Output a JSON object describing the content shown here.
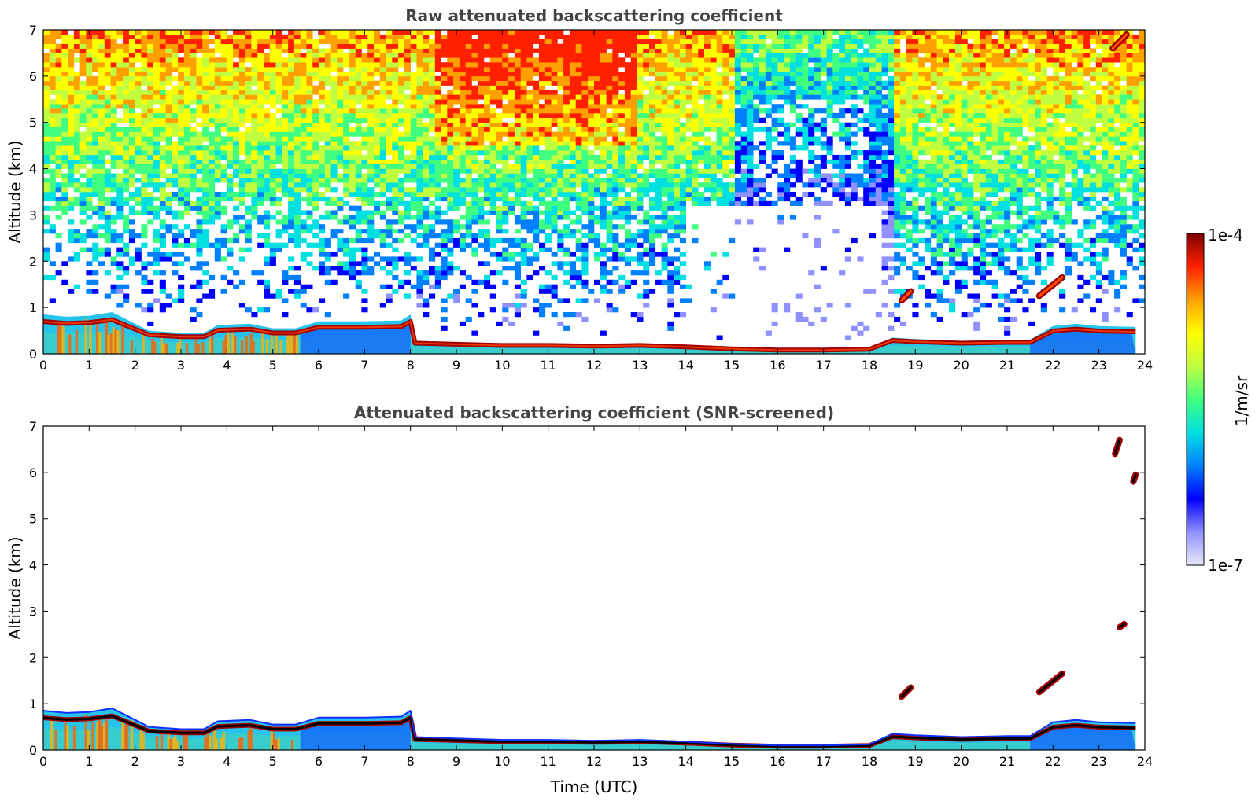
{
  "chart_data": [
    {
      "type": "heatmap",
      "title": "Raw attenuated backscattering coefficient",
      "xlabel": "",
      "ylabel": "Altitude (km)",
      "xlim": [
        0,
        24
      ],
      "ylim": [
        0,
        7
      ],
      "xticks": [
        "0",
        "1",
        "2",
        "3",
        "4",
        "5",
        "6",
        "7",
        "8",
        "9",
        "10",
        "11",
        "12",
        "13",
        "14",
        "15",
        "16",
        "17",
        "18",
        "19",
        "20",
        "21",
        "22",
        "23",
        "24"
      ],
      "yticks": [
        "0",
        "1",
        "2",
        "3",
        "4",
        "5",
        "6",
        "7"
      ],
      "grid": false,
      "noise_field": true,
      "boundary_layer_top_km": [
        [
          0,
          0.85
        ],
        [
          0.5,
          0.8
        ],
        [
          1,
          0.82
        ],
        [
          1.5,
          0.9
        ],
        [
          2,
          0.65
        ],
        [
          2.3,
          0.5
        ],
        [
          3,
          0.45
        ],
        [
          3.5,
          0.45
        ],
        [
          3.8,
          0.62
        ],
        [
          4.5,
          0.65
        ],
        [
          5,
          0.55
        ],
        [
          5.5,
          0.55
        ],
        [
          6,
          0.7
        ],
        [
          7,
          0.7
        ],
        [
          7.8,
          0.72
        ],
        [
          8,
          0.85
        ],
        [
          8.1,
          0.28
        ],
        [
          9,
          0.25
        ],
        [
          10,
          0.22
        ],
        [
          11,
          0.22
        ],
        [
          12,
          0.2
        ],
        [
          13,
          0.22
        ],
        [
          14,
          0.18
        ],
        [
          15,
          0.13
        ],
        [
          16,
          0.1
        ],
        [
          17,
          0.1
        ],
        [
          18,
          0.12
        ],
        [
          18.5,
          0.35
        ],
        [
          19,
          0.32
        ],
        [
          20,
          0.28
        ],
        [
          21,
          0.3
        ],
        [
          21.5,
          0.3
        ],
        [
          22,
          0.6
        ],
        [
          22.5,
          0.65
        ],
        [
          23,
          0.6
        ],
        [
          23.8,
          0.58
        ]
      ],
      "elevated_layers": [
        {
          "x_start": 21.7,
          "x_end": 22.2,
          "y_start_km": 1.25,
          "y_end_km": 1.65
        },
        {
          "x_start": 18.7,
          "x_end": 18.9,
          "y_start_km": 1.15,
          "y_end_km": 1.35
        },
        {
          "x_start": 23.3,
          "x_end": 23.6,
          "y_start_km": 6.6,
          "y_end_km": 6.9
        }
      ]
    },
    {
      "type": "heatmap",
      "title": "Attenuated backscattering coefficient (SNR-screened)",
      "xlabel": "Time (UTC)",
      "ylabel": "Altitude (km)",
      "xlim": [
        0,
        24
      ],
      "ylim": [
        0,
        7
      ],
      "xticks": [
        "0",
        "1",
        "2",
        "3",
        "4",
        "5",
        "6",
        "7",
        "8",
        "9",
        "10",
        "11",
        "12",
        "13",
        "14",
        "15",
        "16",
        "17",
        "18",
        "19",
        "20",
        "21",
        "22",
        "23",
        "24"
      ],
      "yticks": [
        "0",
        "1",
        "2",
        "3",
        "4",
        "5",
        "6",
        "7"
      ],
      "grid": false,
      "noise_field": false,
      "boundary_layer_top_km": [
        [
          0,
          0.85
        ],
        [
          0.5,
          0.8
        ],
        [
          1,
          0.82
        ],
        [
          1.5,
          0.9
        ],
        [
          2,
          0.65
        ],
        [
          2.3,
          0.5
        ],
        [
          3,
          0.45
        ],
        [
          3.5,
          0.45
        ],
        [
          3.8,
          0.62
        ],
        [
          4.5,
          0.65
        ],
        [
          5,
          0.55
        ],
        [
          5.5,
          0.55
        ],
        [
          6,
          0.7
        ],
        [
          7,
          0.7
        ],
        [
          7.8,
          0.72
        ],
        [
          8,
          0.85
        ],
        [
          8.1,
          0.28
        ],
        [
          9,
          0.25
        ],
        [
          10,
          0.22
        ],
        [
          11,
          0.22
        ],
        [
          12,
          0.2
        ],
        [
          13,
          0.22
        ],
        [
          14,
          0.18
        ],
        [
          15,
          0.13
        ],
        [
          16,
          0.1
        ],
        [
          17,
          0.1
        ],
        [
          18,
          0.12
        ],
        [
          18.5,
          0.35
        ],
        [
          19,
          0.32
        ],
        [
          20,
          0.28
        ],
        [
          21,
          0.3
        ],
        [
          21.5,
          0.3
        ],
        [
          22,
          0.6
        ],
        [
          22.5,
          0.65
        ],
        [
          23,
          0.6
        ],
        [
          23.8,
          0.58
        ]
      ],
      "elevated_layers": [
        {
          "x_start": 21.7,
          "x_end": 22.2,
          "y_start_km": 1.25,
          "y_end_km": 1.65
        },
        {
          "x_start": 18.7,
          "x_end": 18.9,
          "y_start_km": 1.15,
          "y_end_km": 1.35
        },
        {
          "x_start": 23.35,
          "x_end": 23.45,
          "y_start_km": 6.4,
          "y_end_km": 6.7
        },
        {
          "x_start": 23.45,
          "x_end": 23.55,
          "y_start_km": 2.65,
          "y_end_km": 2.72
        },
        {
          "x_start": 23.75,
          "x_end": 23.8,
          "y_start_km": 5.8,
          "y_end_km": 5.95
        }
      ]
    }
  ],
  "colorbar": {
    "label": "1/m/sr",
    "max_label": "1e-4",
    "min_label": "1e-7",
    "scale": "log",
    "colormap": [
      "#e8e8f8",
      "#9090ff",
      "#0000ff",
      "#0080ff",
      "#00e0e0",
      "#40ff80",
      "#c0ff40",
      "#ffff00",
      "#ffa000",
      "#ff2000",
      "#800000"
    ]
  }
}
